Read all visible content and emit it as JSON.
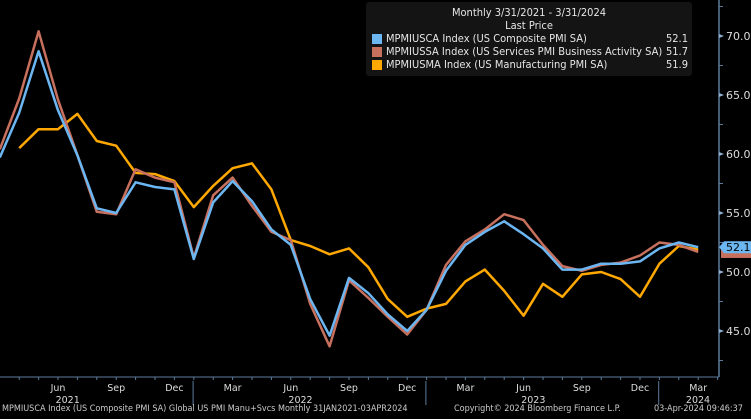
{
  "legend": {
    "title": "Monthly 3/31/2021 - 3/31/2024",
    "subtitle": "Last Price",
    "items": [
      {
        "label": "MPMIUSCA Index (US Composite PMI SA)",
        "value": "52.1",
        "color": "#6cb6f2"
      },
      {
        "label": "MPMIUSSA Index (US Services PMI Business Activity SA)",
        "value": "51.7",
        "color": "#c8705e"
      },
      {
        "label": "MPMIUSMA Index (US Manufacturing PMI SA)",
        "value": "51.9",
        "color": "#ffa800"
      }
    ]
  },
  "footer": {
    "left": "MPMIUSCA Index (US Composite PMI SA) Global US PMI Manu+Svcs  Monthly 31JAN2021-03APR2024",
    "center": "Copyright© 2024 Bloomberg Finance L.P.",
    "right": "03-Apr-2024 09:46:37"
  },
  "chart_data": {
    "type": "line",
    "ylim": [
      42,
      72
    ],
    "y_ticks": [
      "70.0",
      "65.0",
      "60.0",
      "55.0",
      "50.0",
      "45.0"
    ],
    "y_axis_side": "right",
    "x_month_labels": [
      {
        "m": "2021-06",
        "t": "Jun"
      },
      {
        "m": "2021-09",
        "t": "Sep"
      },
      {
        "m": "2021-12",
        "t": "Dec"
      },
      {
        "m": "2022-03",
        "t": "Mar"
      },
      {
        "m": "2022-06",
        "t": "Jun"
      },
      {
        "m": "2022-09",
        "t": "Sep"
      },
      {
        "m": "2022-12",
        "t": "Dec"
      },
      {
        "m": "2023-03",
        "t": "Mar"
      },
      {
        "m": "2023-06",
        "t": "Jun"
      },
      {
        "m": "2023-09",
        "t": "Sep"
      },
      {
        "m": "2023-12",
        "t": "Dec"
      },
      {
        "m": "2024-03",
        "t": "Mar"
      }
    ],
    "x_year_labels": [
      "2021",
      "2022",
      "2023",
      "2024"
    ],
    "last_value_label": "52.1",
    "series": [
      {
        "name": "MPMIUSCA Index (US Composite PMI SA)",
        "color": "#6cb6f2",
        "start": "2021-03",
        "values": [
          59.7,
          63.5,
          68.7,
          63.7,
          59.9,
          55.4,
          55.0,
          57.6,
          57.2,
          57.0,
          51.1,
          55.9,
          57.7,
          56.0,
          53.6,
          52.3,
          47.7,
          44.6,
          49.5,
          48.2,
          46.4,
          45.0,
          46.8,
          50.1,
          52.3,
          53.4,
          54.3,
          53.2,
          52.0,
          50.2,
          50.2,
          50.7,
          50.7,
          50.9,
          52.0,
          52.5,
          52.1
        ]
      },
      {
        "name": "MPMIUSSA Index (US Services PMI Business Activity SA)",
        "color": "#c8705e",
        "start": "2021-03",
        "values": [
          60.4,
          64.7,
          70.4,
          64.6,
          59.9,
          55.1,
          54.9,
          58.7,
          58.0,
          57.6,
          51.2,
          56.5,
          58.0,
          55.6,
          53.4,
          52.7,
          47.3,
          43.7,
          49.3,
          47.8,
          46.2,
          44.7,
          46.8,
          50.6,
          52.6,
          53.6,
          54.9,
          54.4,
          52.3,
          50.5,
          50.1,
          50.6,
          50.8,
          51.4,
          52.5,
          52.3,
          51.7
        ]
      },
      {
        "name": "MPMIUSMA Index (US Manufacturing PMI SA)",
        "color": "#ffa800",
        "start": "2021-04",
        "values": [
          60.5,
          62.1,
          62.1,
          63.4,
          61.1,
          60.7,
          58.4,
          58.3,
          57.7,
          55.5,
          57.3,
          58.8,
          59.2,
          57.0,
          52.7,
          52.2,
          51.5,
          52.0,
          50.4,
          47.7,
          46.2,
          46.9,
          47.3,
          49.2,
          50.2,
          48.4,
          46.3,
          49.0,
          47.9,
          49.8,
          50.0,
          49.4,
          47.9,
          50.7,
          52.2,
          51.9
        ]
      }
    ]
  }
}
